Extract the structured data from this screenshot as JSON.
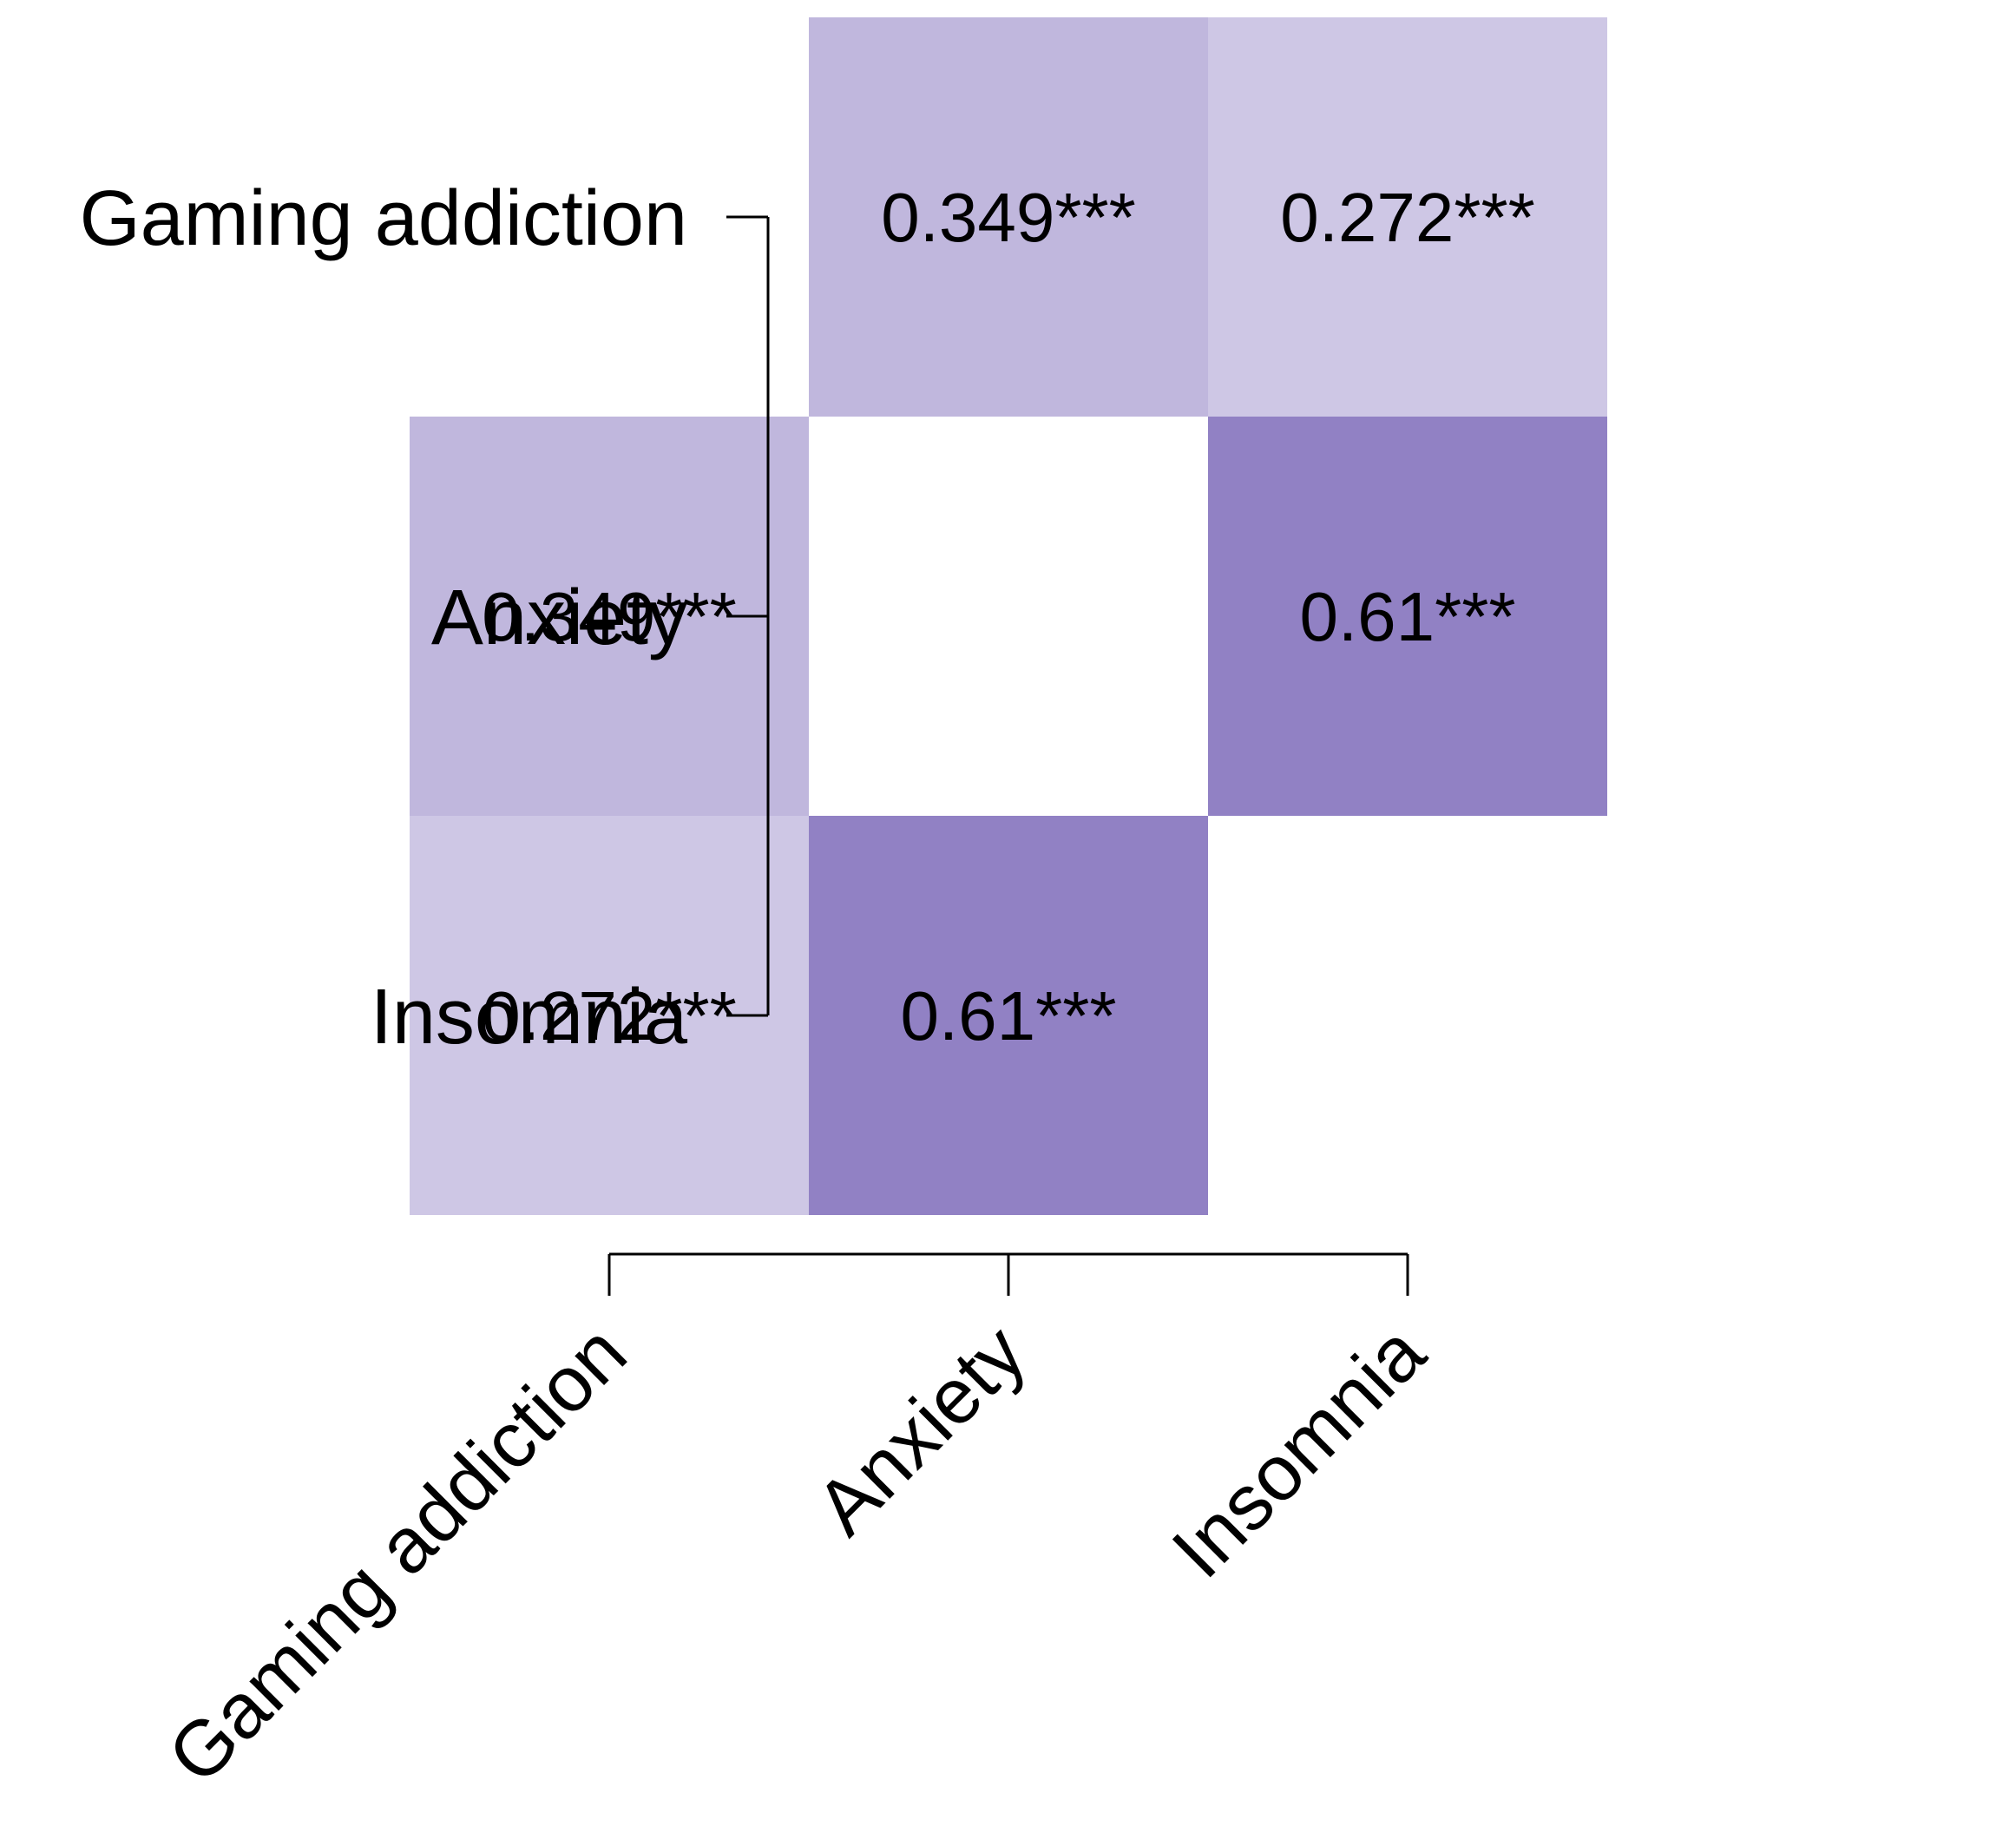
{
  "chart_data": {
    "type": "heatmap",
    "title": "",
    "xlabel": "",
    "ylabel": "",
    "x_categories": [
      "Gaming addiction",
      "Anxiety",
      "Insomnia"
    ],
    "y_categories": [
      "Gaming addiction",
      "Anxiety",
      "Insomnia"
    ],
    "values": [
      [
        null,
        0.349,
        0.272
      ],
      [
        0.349,
        null,
        0.61
      ],
      [
        0.272,
        0.61,
        null
      ]
    ],
    "labels": [
      [
        null,
        "0.349***",
        "0.272***"
      ],
      [
        "0.349***",
        null,
        "0.61***"
      ],
      [
        "0.272***",
        "0.61***",
        null
      ]
    ],
    "color_scale": {
      "low": "#ffffff",
      "high": "#9181c4"
    },
    "value_range": [
      0,
      0.61
    ],
    "grid": false,
    "legend": "none"
  }
}
